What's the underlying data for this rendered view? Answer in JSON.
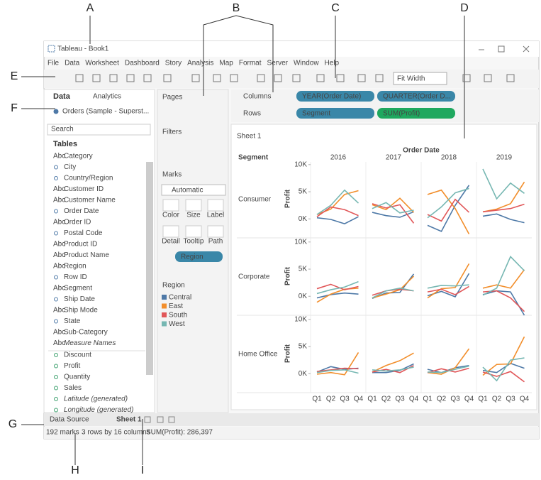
{
  "callouts": [
    "A",
    "B",
    "C",
    "D",
    "E",
    "F",
    "G",
    "H",
    "I"
  ],
  "window_title": "Tableau - Book1",
  "menu": [
    "File",
    "Data",
    "Worksheet",
    "Dashboard",
    "Story",
    "Analysis",
    "Map",
    "Format",
    "Server",
    "Window",
    "Help"
  ],
  "toolbar": {
    "fit": "Fit Width"
  },
  "data_pane": {
    "tabs": [
      "Data",
      "Analytics"
    ],
    "source": "Orders (Sample - Superst...",
    "search": "Search",
    "tables_heading": "Tables",
    "dimensions": [
      {
        "icon": "Abc",
        "name": "Category"
      },
      {
        "name": "City"
      },
      {
        "name": "Country/Region"
      },
      {
        "icon": "Abc",
        "name": "Customer ID"
      },
      {
        "icon": "Abc",
        "name": "Customer Name"
      },
      {
        "name": "Order Date"
      },
      {
        "icon": "Abc",
        "name": "Order ID"
      },
      {
        "name": "Postal Code"
      },
      {
        "icon": "Abc",
        "name": "Product ID"
      },
      {
        "icon": "Abc",
        "name": "Product Name"
      },
      {
        "icon": "Abc",
        "name": "Region"
      },
      {
        "name": "Row ID"
      },
      {
        "icon": "Abc",
        "name": "Segment"
      },
      {
        "name": "Ship Date"
      },
      {
        "icon": "Abc",
        "name": "Ship Mode"
      },
      {
        "name": "State"
      },
      {
        "icon": "Abc",
        "name": "Sub-Category"
      },
      {
        "icon": "Abc",
        "name": "Measure Names",
        "italic": true
      }
    ],
    "measures": [
      {
        "name": "Discount"
      },
      {
        "name": "Profit"
      },
      {
        "name": "Quantity"
      },
      {
        "name": "Sales"
      },
      {
        "name": "Latitude (generated)",
        "italic": true
      },
      {
        "name": "Longitude (generated)",
        "italic": true
      }
    ]
  },
  "cards": {
    "pages": "Pages",
    "filters": "Filters",
    "marks": "Marks",
    "mark_type": "Automatic",
    "buttons": [
      "Color",
      "Size",
      "Label",
      "Detail",
      "Tooltip",
      "Path"
    ],
    "mark_pill": "Region"
  },
  "shelves": {
    "columns": "Columns",
    "rows": "Rows",
    "column_pills": [
      "YEAR(Order Date)",
      "QUARTER(Order D..."
    ],
    "row_pills": [
      "Segment",
      "SUM(Profit)"
    ]
  },
  "legend": {
    "title": "Region",
    "items": [
      {
        "name": "Central",
        "color": "#4e79a7"
      },
      {
        "name": "East",
        "color": "#f28e2b"
      },
      {
        "name": "South",
        "color": "#e15759"
      },
      {
        "name": "West",
        "color": "#76b7b2"
      }
    ]
  },
  "view": {
    "sheet_title": "Sheet 1",
    "row_header": "Segment",
    "column_header": "Order Date",
    "years": [
      "2016",
      "2017",
      "2018",
      "2019"
    ],
    "quarters": [
      "Q1",
      "Q2",
      "Q3",
      "Q4"
    ],
    "axis_title": "Profit",
    "ylim": [
      -3500,
      10500
    ],
    "yticks": [
      {
        "value": 10000,
        "label": "10K"
      },
      {
        "value": 5000,
        "label": "5K"
      },
      {
        "value": 0,
        "label": "0K"
      }
    ],
    "segments": [
      {
        "name": "Consumer",
        "series": [
          [
            200,
            -100,
            -900,
            400,
            1200,
            600,
            300,
            1300,
            -1200,
            -2300,
            2500,
            6200,
            500,
            900,
            -100,
            -700
          ],
          [
            800,
            1800,
            4500,
            5200,
            2600,
            1700,
            3800,
            1200,
            4500,
            5300,
            1900,
            -2800,
            1300,
            1800,
            2800,
            6800
          ],
          [
            400,
            2200,
            1700,
            600,
            2800,
            2000,
            2600,
            -800,
            800,
            -400,
            3600,
            1200,
            1300,
            1600,
            1900,
            2700
          ],
          [
            800,
            2500,
            5300,
            2900,
            1900,
            3000,
            1100,
            1600,
            200,
            2200,
            4800,
            5600,
            9200,
            3700,
            6600,
            4700
          ]
        ]
      },
      {
        "name": "Corporate",
        "series": [
          [
            -300,
            300,
            600,
            400,
            -400,
            600,
            700,
            4100,
            100,
            900,
            -100,
            4200,
            300,
            1000,
            800,
            -3500
          ],
          [
            -1100,
            400,
            1300,
            1500,
            -300,
            400,
            1200,
            3700,
            -300,
            1400,
            1600,
            6000,
            1500,
            2100,
            1500,
            4900
          ],
          [
            1400,
            2200,
            1200,
            1800,
            200,
            1000,
            1300,
            1000,
            800,
            1300,
            300,
            1800,
            800,
            1000,
            -300,
            -2800
          ],
          [
            500,
            1200,
            1700,
            2700,
            -300,
            1000,
            1500,
            1000,
            1500,
            2000,
            1900,
            2100,
            200,
            1500,
            7300,
            4700
          ]
        ]
      },
      {
        "name": "Home Office",
        "series": [
          [
            300,
            1300,
            800,
            1000,
            200,
            200,
            600,
            1800,
            800,
            200,
            1100,
            1500,
            600,
            200,
            1900,
            1000
          ],
          [
            -100,
            200,
            -200,
            3900,
            300,
            1500,
            2400,
            3800,
            200,
            -100,
            1100,
            4600,
            -300,
            1700,
            1800,
            6800
          ],
          [
            400,
            700,
            1000,
            900,
            300,
            800,
            200,
            1500,
            200,
            900,
            300,
            1000,
            300,
            -500,
            400,
            -1500
          ],
          [
            200,
            600,
            700,
            100,
            700,
            500,
            700,
            1200,
            300,
            200,
            800,
            1400,
            1200,
            -1300,
            2500,
            2900
          ]
        ]
      }
    ]
  },
  "tabs": {
    "data_source": "Data Source",
    "sheet": "Sheet 1"
  },
  "status": {
    "marks": "192 marks",
    "dims": "3 rows by 16 columns",
    "sum": "SUM(Profit): 286,397"
  }
}
